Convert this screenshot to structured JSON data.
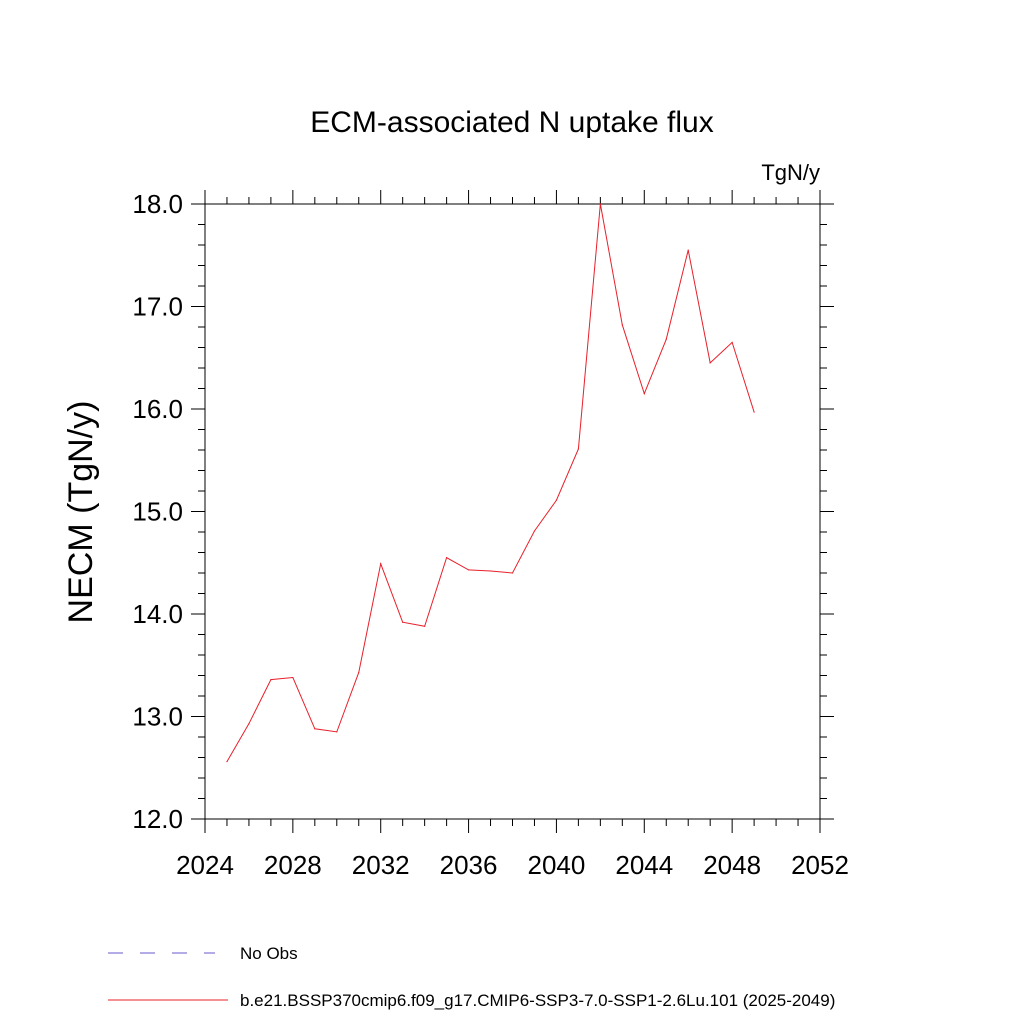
{
  "chart_data": {
    "type": "line",
    "title": "ECM-associated N uptake flux",
    "units": "TgN/y",
    "xlabel": "",
    "ylabel": "NECM  (TgN/y)",
    "xlim": [
      2024,
      2052
    ],
    "ylim": [
      12.0,
      18.0
    ],
    "xticks": [
      2024,
      2028,
      2032,
      2036,
      2040,
      2044,
      2048,
      2052
    ],
    "xtick_labels": [
      "2024",
      "2028",
      "2032",
      "2036",
      "2040",
      "2044",
      "2048",
      "2052"
    ],
    "yticks": [
      12.0,
      13.0,
      14.0,
      15.0,
      16.0,
      17.0,
      18.0
    ],
    "ytick_labels": [
      "12.0",
      "13.0",
      "14.0",
      "15.0",
      "16.0",
      "17.0",
      "18.0"
    ],
    "grid": false,
    "legend_position": "bottom-left",
    "series": [
      {
        "name": "b.e21.BSSP370cmip6.f09_g17.CMIP6-SSP3-7.0-SSP1-2.6Lu.101 (2025-2049)",
        "color": "#e8202a",
        "style": "solid",
        "x": [
          2025,
          2026,
          2027,
          2028,
          2029,
          2030,
          2031,
          2032,
          2033,
          2034,
          2035,
          2036,
          2037,
          2038,
          2039,
          2040,
          2041,
          2042,
          2043,
          2044,
          2045,
          2046,
          2047,
          2048,
          2049
        ],
        "values": [
          12.56,
          12.93,
          13.36,
          13.38,
          12.88,
          12.85,
          13.43,
          14.49,
          13.92,
          13.88,
          14.55,
          14.43,
          14.42,
          14.4,
          14.81,
          15.11,
          15.61,
          18.0,
          16.82,
          16.15,
          16.68,
          17.55,
          16.45,
          16.65,
          15.97
        ]
      }
    ],
    "legend": [
      {
        "label": "No Obs",
        "color": "#6a5acd",
        "style": "dashed"
      },
      {
        "label": "b.e21.BSSP370cmip6.f09_g17.CMIP6-SSP3-7.0-SSP1-2.6Lu.101 (2025-2049)",
        "color": "#e8202a",
        "style": "solid"
      }
    ]
  }
}
